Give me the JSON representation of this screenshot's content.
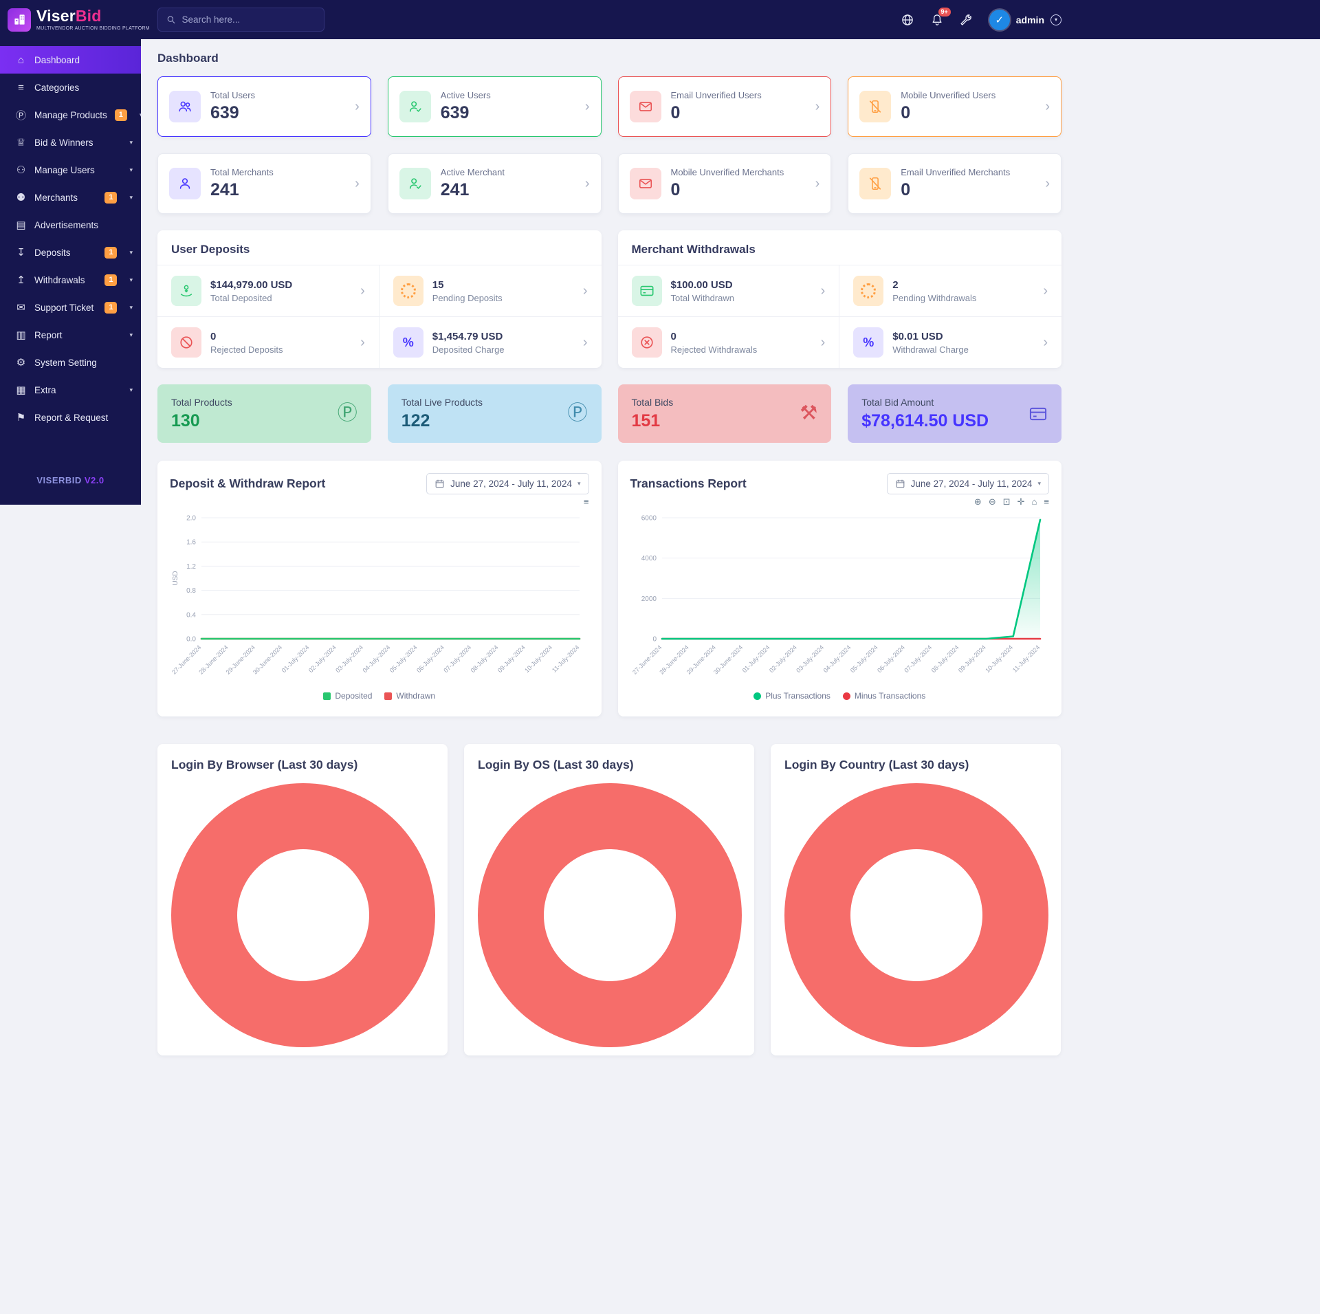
{
  "brand": {
    "logo_text_1": "Viser",
    "logo_text_2": "Bid",
    "tagline": "MULTIVENDOR AUCTION BIDDING PLATFORM",
    "footer_1": "VISERBID",
    "footer_2": "V2.0"
  },
  "topbar": {
    "search_placeholder": "Search here...",
    "notification_badge": "9+",
    "admin_label": "admin"
  },
  "page_title": "Dashboard",
  "icons": {
    "home": "⌂",
    "categories": "≡",
    "products": "Ⓟ",
    "trophy": "♕",
    "users": "⚇",
    "merchants": "⚉",
    "ads": "▤",
    "deposit": "↧",
    "withdraw": "↥",
    "ticket": "✉",
    "report": "▥",
    "gear": "⚙",
    "extra": "▦",
    "flag": "⚑",
    "caret_down": "▾",
    "chevron_right": "›",
    "menu": "≡",
    "zoom_in": "⊕",
    "zoom_out": "⊖",
    "zoom_select": "⊡",
    "pan": "✛",
    "percent": "%",
    "product_circle": "Ⓟ",
    "gavel": "⚒",
    "check": "✓"
  },
  "sidebar": {
    "items": [
      {
        "label": "Dashboard"
      },
      {
        "label": "Categories"
      },
      {
        "label": "Manage Products",
        "badge": "1"
      },
      {
        "label": "Bid & Winners"
      },
      {
        "label": "Manage Users"
      },
      {
        "label": "Merchants",
        "badge": "1"
      },
      {
        "label": "Advertisements"
      },
      {
        "label": "Deposits",
        "badge": "1"
      },
      {
        "label": "Withdrawals",
        "badge": "1"
      },
      {
        "label": "Support Ticket",
        "badge": "1"
      },
      {
        "label": "Report"
      },
      {
        "label": "System Setting"
      },
      {
        "label": "Extra"
      },
      {
        "label": "Report & Request"
      }
    ]
  },
  "stats_row1": [
    {
      "label": "Total Users",
      "value": "639"
    },
    {
      "label": "Active Users",
      "value": "639"
    },
    {
      "label": "Email Unverified Users",
      "value": "0"
    },
    {
      "label": "Mobile Unverified Users",
      "value": "0"
    }
  ],
  "stats_row2": [
    {
      "label": "Total Merchants",
      "value": "241"
    },
    {
      "label": "Active Merchant",
      "value": "241"
    },
    {
      "label": "Mobile Unverified Merchants",
      "value": "0"
    },
    {
      "label": "Email Unverified Merchants",
      "value": "0"
    }
  ],
  "user_deposits": {
    "title": "User Deposits",
    "cells": [
      {
        "value": "$144,979.00 USD",
        "label": "Total Deposited"
      },
      {
        "value": "15",
        "label": "Pending Deposits"
      },
      {
        "value": "0",
        "label": "Rejected Deposits"
      },
      {
        "value": "$1,454.79 USD",
        "label": "Deposited Charge"
      }
    ]
  },
  "merchant_withdrawals": {
    "title": "Merchant Withdrawals",
    "cells": [
      {
        "value": "$100.00 USD",
        "label": "Total Withdrawn"
      },
      {
        "value": "2",
        "label": "Pending Withdrawals"
      },
      {
        "value": "0",
        "label": "Rejected Withdrawals"
      },
      {
        "value": "$0.01 USD",
        "label": "Withdrawal Charge"
      }
    ]
  },
  "tiles": [
    {
      "label": "Total Products",
      "value": "130"
    },
    {
      "label": "Total Live Products",
      "value": "122"
    },
    {
      "label": "Total Bids",
      "value": "151"
    },
    {
      "label": "Total Bid Amount",
      "value": "$78,614.50 USD"
    }
  ],
  "charts": {
    "deposit": {
      "title": "Deposit & Withdraw Report",
      "date_range": "June 27, 2024 - July 11, 2024"
    },
    "transactions": {
      "title": "Transactions Report",
      "date_range": "June 27, 2024 - July 11, 2024"
    }
  },
  "donuts": {
    "color": "#f66d6a",
    "items": [
      {
        "title": "Login By Browser (Last 30 days)"
      },
      {
        "title": "Login By OS (Last 30 days)"
      },
      {
        "title": "Login By Country (Last 30 days)"
      }
    ]
  },
  "colors": {
    "primary": "#4634ff",
    "success": "#28c76f",
    "danger": "#ea5455",
    "warning": "#ff9f43",
    "donut": "#f66d6a"
  },
  "chart_data": [
    {
      "type": "line",
      "title": "Deposit & Withdraw Report",
      "ylabel": "USD",
      "ylim": [
        0,
        2
      ],
      "yticks": [
        0,
        0.4,
        0.8,
        1.2,
        1.6,
        2.0
      ],
      "ytick_labels": [
        "0.0",
        "0.4",
        "0.8",
        "1.2",
        "1.6",
        "2.0"
      ],
      "categories": [
        "27-June-2024",
        "28-June-2024",
        "29-June-2024",
        "30-June-2024",
        "01-July-2024",
        "02-July-2024",
        "03-July-2024",
        "04-July-2024",
        "05-July-2024",
        "06-July-2024",
        "07-July-2024",
        "08-July-2024",
        "09-July-2024",
        "10-July-2024",
        "11-July-2024"
      ],
      "legend_position": "bottom",
      "series": [
        {
          "name": "Deposited",
          "color": "#28c76f",
          "values": [
            0,
            0,
            0,
            0,
            0,
            0,
            0,
            0,
            0,
            0,
            0,
            0,
            0,
            0,
            0
          ]
        },
        {
          "name": "Withdrawn",
          "color": "#ea5455",
          "values": [
            0,
            0,
            0,
            0,
            0,
            0,
            0,
            0,
            0,
            0,
            0,
            0,
            0,
            0,
            0
          ]
        }
      ]
    },
    {
      "type": "area",
      "title": "Transactions Report",
      "ylabel": "",
      "ylim": [
        0,
        6000
      ],
      "yticks": [
        0,
        2000,
        4000,
        6000
      ],
      "ytick_labels": [
        "0",
        "2000",
        "4000",
        "6000"
      ],
      "categories": [
        "27-June-2024",
        "28-June-2024",
        "29-June-2024",
        "30-June-2024",
        "01-July-2024",
        "02-July-2024",
        "03-July-2024",
        "04-July-2024",
        "05-July-2024",
        "06-July-2024",
        "07-July-2024",
        "08-July-2024",
        "09-July-2024",
        "10-July-2024",
        "11-July-2024"
      ],
      "legend_position": "bottom",
      "series": [
        {
          "name": "Plus Transactions",
          "color": "#00c780",
          "fill": true,
          "values": [
            0,
            0,
            0,
            0,
            0,
            0,
            0,
            0,
            0,
            0,
            0,
            0,
            0,
            120,
            5900
          ]
        },
        {
          "name": "Minus Transactions",
          "color": "#ea3943",
          "values": [
            0,
            0,
            0,
            0,
            0,
            0,
            0,
            0,
            0,
            0,
            0,
            0,
            0,
            0,
            0
          ]
        }
      ]
    },
    {
      "type": "pie",
      "title": "Login By Browser (Last 30 days)",
      "values": [
        100
      ],
      "colors": [
        "#f66d6a"
      ],
      "donut": true
    },
    {
      "type": "pie",
      "title": "Login By OS (Last 30 days)",
      "values": [
        100
      ],
      "colors": [
        "#f66d6a"
      ],
      "donut": true
    },
    {
      "type": "pie",
      "title": "Login By Country (Last 30 days)",
      "values": [
        100
      ],
      "colors": [
        "#f66d6a"
      ],
      "donut": true
    }
  ]
}
